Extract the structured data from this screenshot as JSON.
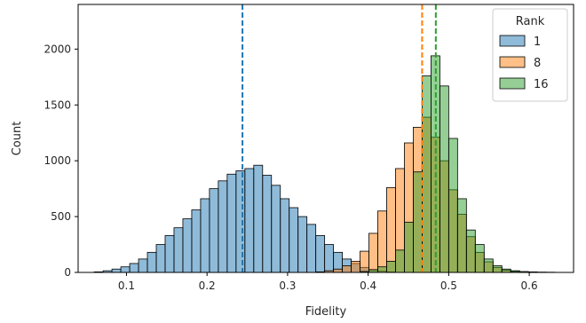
{
  "chart_data": {
    "type": "histogram",
    "title": "",
    "xlabel": "Fidelity",
    "ylabel": "Count",
    "xlim": [
      0.04,
      0.655
    ],
    "ylim": [
      0,
      2400
    ],
    "xticks": [
      0.1,
      0.2,
      0.3,
      0.4,
      0.5,
      0.6
    ],
    "yticks": [
      0,
      500,
      1000,
      1500,
      2000
    ],
    "legend": {
      "title": "Rank",
      "placement": "top-right"
    },
    "series": [
      {
        "name": "1",
        "color": "#1f77b4",
        "mean": 0.244,
        "bins": [
          [
            0.06,
            0.071,
            5
          ],
          [
            0.071,
            0.082,
            15
          ],
          [
            0.082,
            0.093,
            30
          ],
          [
            0.093,
            0.104,
            50
          ],
          [
            0.104,
            0.115,
            80
          ],
          [
            0.115,
            0.126,
            120
          ],
          [
            0.126,
            0.137,
            180
          ],
          [
            0.137,
            0.148,
            250
          ],
          [
            0.148,
            0.159,
            330
          ],
          [
            0.159,
            0.17,
            400
          ],
          [
            0.17,
            0.181,
            480
          ],
          [
            0.181,
            0.192,
            560
          ],
          [
            0.192,
            0.203,
            660
          ],
          [
            0.203,
            0.214,
            750
          ],
          [
            0.214,
            0.225,
            820
          ],
          [
            0.225,
            0.236,
            880
          ],
          [
            0.236,
            0.247,
            910
          ],
          [
            0.247,
            0.258,
            930
          ],
          [
            0.258,
            0.269,
            960
          ],
          [
            0.269,
            0.28,
            870
          ],
          [
            0.28,
            0.291,
            780
          ],
          [
            0.291,
            0.302,
            660
          ],
          [
            0.302,
            0.313,
            580
          ],
          [
            0.313,
            0.324,
            500
          ],
          [
            0.324,
            0.335,
            430
          ],
          [
            0.335,
            0.346,
            330
          ],
          [
            0.346,
            0.357,
            250
          ],
          [
            0.357,
            0.368,
            180
          ],
          [
            0.368,
            0.379,
            120
          ],
          [
            0.379,
            0.39,
            80
          ],
          [
            0.39,
            0.401,
            45
          ],
          [
            0.401,
            0.412,
            25
          ],
          [
            0.412,
            0.423,
            12
          ],
          [
            0.423,
            0.434,
            5
          ]
        ]
      },
      {
        "name": "8",
        "color": "#ff7f0e",
        "mean": 0.467,
        "bins": [
          [
            0.335,
            0.346,
            5
          ],
          [
            0.346,
            0.357,
            15
          ],
          [
            0.357,
            0.368,
            30
          ],
          [
            0.368,
            0.379,
            60
          ],
          [
            0.379,
            0.39,
            100
          ],
          [
            0.39,
            0.401,
            190
          ],
          [
            0.401,
            0.412,
            350
          ],
          [
            0.412,
            0.423,
            550
          ],
          [
            0.423,
            0.434,
            760
          ],
          [
            0.434,
            0.445,
            930
          ],
          [
            0.445,
            0.456,
            1160
          ],
          [
            0.456,
            0.467,
            1300
          ],
          [
            0.467,
            0.478,
            1390
          ],
          [
            0.478,
            0.489,
            1210
          ],
          [
            0.489,
            0.5,
            1000
          ],
          [
            0.5,
            0.511,
            740
          ],
          [
            0.511,
            0.522,
            520
          ],
          [
            0.522,
            0.533,
            320
          ],
          [
            0.533,
            0.544,
            180
          ],
          [
            0.544,
            0.555,
            95
          ],
          [
            0.555,
            0.566,
            45
          ],
          [
            0.566,
            0.577,
            20
          ],
          [
            0.577,
            0.588,
            8
          ]
        ]
      },
      {
        "name": "16",
        "color": "#2ca02c",
        "mean": 0.484,
        "bins": [
          [
            0.39,
            0.401,
            8
          ],
          [
            0.401,
            0.412,
            25
          ],
          [
            0.412,
            0.423,
            50
          ],
          [
            0.423,
            0.434,
            100
          ],
          [
            0.434,
            0.445,
            200
          ],
          [
            0.445,
            0.456,
            450
          ],
          [
            0.456,
            0.467,
            900
          ],
          [
            0.467,
            0.478,
            1760
          ],
          [
            0.478,
            0.489,
            1940
          ],
          [
            0.489,
            0.5,
            1670
          ],
          [
            0.5,
            0.511,
            1200
          ],
          [
            0.511,
            0.522,
            660
          ],
          [
            0.522,
            0.533,
            380
          ],
          [
            0.533,
            0.544,
            250
          ],
          [
            0.544,
            0.555,
            120
          ],
          [
            0.555,
            0.566,
            60
          ],
          [
            0.566,
            0.577,
            30
          ],
          [
            0.577,
            0.588,
            15
          ],
          [
            0.588,
            0.599,
            8
          ],
          [
            0.599,
            0.61,
            5
          ],
          [
            0.61,
            0.621,
            3
          ],
          [
            0.621,
            0.632,
            2
          ]
        ]
      }
    ]
  }
}
